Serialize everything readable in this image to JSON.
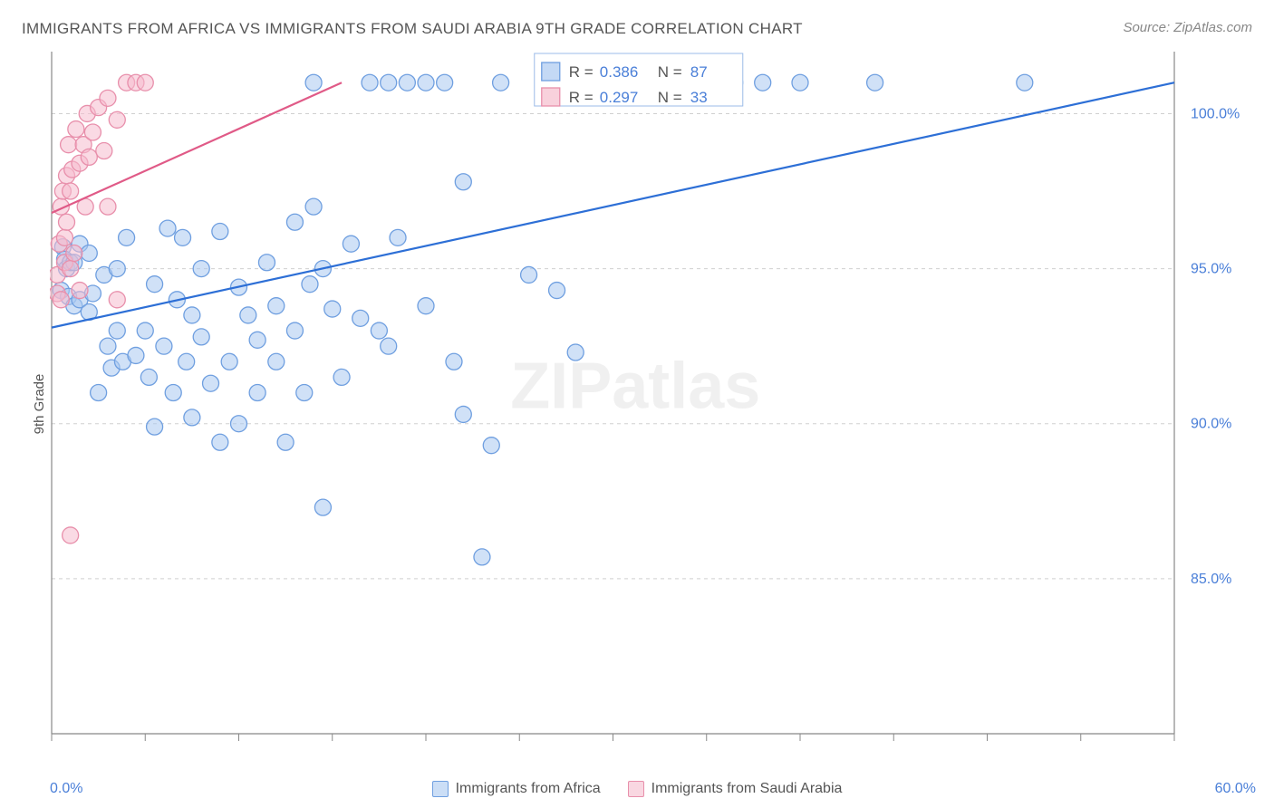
{
  "title": "IMMIGRANTS FROM AFRICA VS IMMIGRANTS FROM SAUDI ARABIA 9TH GRADE CORRELATION CHART",
  "source": "Source: ZipAtlas.com",
  "y_axis_label": "9th Grade",
  "watermark": "ZIPatlas",
  "plot": {
    "xlim": [
      0,
      60
    ],
    "ylim": [
      80,
      102
    ],
    "x_ticks": [
      0,
      5,
      10,
      15,
      20,
      25,
      30,
      35,
      40,
      45,
      50,
      55,
      60
    ],
    "x_tick_labels": {
      "0": "0.0%",
      "60": "60.0%"
    },
    "y_ticks": [
      85,
      90,
      95,
      100
    ],
    "y_tick_labels": {
      "85": "85.0%",
      "90": "90.0%",
      "95": "95.0%",
      "100": "100.0%"
    },
    "grid_color": "#d0d0d0",
    "axis_color": "#888888",
    "background": "#ffffff"
  },
  "stats_box": {
    "border_color": "#9bbbe8",
    "rows": [
      {
        "swatch": "#a9c8f0",
        "swatch_border": "#6f9fe0",
        "r_label": "R =",
        "r_value": "0.386",
        "n_label": "N =",
        "n_value": "87"
      },
      {
        "swatch": "#f5bccd",
        "swatch_border": "#e88fab",
        "r_label": "R =",
        "r_value": "0.297",
        "n_label": "N =",
        "n_value": "33"
      }
    ],
    "label_color": "#555555",
    "value_color": "#4a7fd8"
  },
  "series": [
    {
      "name": "Immigrants from Africa",
      "marker_fill": "#a9c8f0",
      "marker_fill_opacity": 0.55,
      "marker_stroke": "#6f9fe0",
      "marker_radius": 9,
      "line_color": "#2d6fd6",
      "line_width": 2.2,
      "trend": {
        "x1": 0,
        "y1": 93.1,
        "x2": 60,
        "y2": 101.0
      },
      "points": [
        [
          0.5,
          94.3
        ],
        [
          0.6,
          95.7
        ],
        [
          0.7,
          95.3
        ],
        [
          0.8,
          95.0
        ],
        [
          0.9,
          94.1
        ],
        [
          1.0,
          95.2
        ],
        [
          1.2,
          95.2
        ],
        [
          1.2,
          93.8
        ],
        [
          1.5,
          94.0
        ],
        [
          1.5,
          95.8
        ],
        [
          2.0,
          95.5
        ],
        [
          2.0,
          93.6
        ],
        [
          2.2,
          94.2
        ],
        [
          2.5,
          91.0
        ],
        [
          2.8,
          94.8
        ],
        [
          3.0,
          92.5
        ],
        [
          3.2,
          91.8
        ],
        [
          3.5,
          95.0
        ],
        [
          3.5,
          93.0
        ],
        [
          3.8,
          92.0
        ],
        [
          4.0,
          96.0
        ],
        [
          4.5,
          92.2
        ],
        [
          5.0,
          93.0
        ],
        [
          5.2,
          91.5
        ],
        [
          5.5,
          94.5
        ],
        [
          5.5,
          89.9
        ],
        [
          6.0,
          92.5
        ],
        [
          6.2,
          96.3
        ],
        [
          6.5,
          91.0
        ],
        [
          6.7,
          94.0
        ],
        [
          7.0,
          96.0
        ],
        [
          7.2,
          92.0
        ],
        [
          7.5,
          93.5
        ],
        [
          7.5,
          90.2
        ],
        [
          8.0,
          95.0
        ],
        [
          8.0,
          92.8
        ],
        [
          8.5,
          91.3
        ],
        [
          9.0,
          89.4
        ],
        [
          9.0,
          96.2
        ],
        [
          9.5,
          92.0
        ],
        [
          10.0,
          94.4
        ],
        [
          10.0,
          90.0
        ],
        [
          10.5,
          93.5
        ],
        [
          11.0,
          91.0
        ],
        [
          11.0,
          92.7
        ],
        [
          11.5,
          95.2
        ],
        [
          12.0,
          92.0
        ],
        [
          12.0,
          93.8
        ],
        [
          12.5,
          89.4
        ],
        [
          13.0,
          93.0
        ],
        [
          13.0,
          96.5
        ],
        [
          13.5,
          91.0
        ],
        [
          13.8,
          94.5
        ],
        [
          14.0,
          97.0
        ],
        [
          14.0,
          101.0
        ],
        [
          14.5,
          87.3
        ],
        [
          14.5,
          95.0
        ],
        [
          15.0,
          93.7
        ],
        [
          15.5,
          91.5
        ],
        [
          16.0,
          95.8
        ],
        [
          16.5,
          93.4
        ],
        [
          17.0,
          101.0
        ],
        [
          17.5,
          93.0
        ],
        [
          18.0,
          92.5
        ],
        [
          18.0,
          101.0
        ],
        [
          18.5,
          96.0
        ],
        [
          19.0,
          101.0
        ],
        [
          20.0,
          101.0
        ],
        [
          20.0,
          93.8
        ],
        [
          21.0,
          101.0
        ],
        [
          21.5,
          92.0
        ],
        [
          22.0,
          90.3
        ],
        [
          22.0,
          97.8
        ],
        [
          23.0,
          85.7
        ],
        [
          23.5,
          89.3
        ],
        [
          24.0,
          101.0
        ],
        [
          25.5,
          94.8
        ],
        [
          27.0,
          94.3
        ],
        [
          27.5,
          101.0
        ],
        [
          28.0,
          92.3
        ],
        [
          30.0,
          101.0
        ],
        [
          33.0,
          101.0
        ],
        [
          36.5,
          101.0
        ],
        [
          38.0,
          101.0
        ],
        [
          40.0,
          101.0
        ],
        [
          44.0,
          101.0
        ],
        [
          52.0,
          101.0
        ]
      ]
    },
    {
      "name": "Immigrants from Saudi Arabia",
      "marker_fill": "#f5bccd",
      "marker_fill_opacity": 0.55,
      "marker_stroke": "#e88fab",
      "marker_radius": 9,
      "line_color": "#e05a87",
      "line_width": 2.2,
      "trend": {
        "x1": 0,
        "y1": 96.8,
        "x2": 15.5,
        "y2": 101.0
      },
      "points": [
        [
          0.3,
          94.8
        ],
        [
          0.3,
          94.2
        ],
        [
          0.4,
          95.8
        ],
        [
          0.5,
          97.0
        ],
        [
          0.5,
          94.0
        ],
        [
          0.6,
          97.5
        ],
        [
          0.7,
          96.0
        ],
        [
          0.7,
          95.2
        ],
        [
          0.8,
          98.0
        ],
        [
          0.8,
          96.5
        ],
        [
          0.9,
          99.0
        ],
        [
          1.0,
          97.5
        ],
        [
          1.0,
          95.0
        ],
        [
          1.1,
          98.2
        ],
        [
          1.2,
          95.5
        ],
        [
          1.3,
          99.5
        ],
        [
          1.5,
          94.3
        ],
        [
          1.5,
          98.4
        ],
        [
          1.7,
          99.0
        ],
        [
          1.8,
          97.0
        ],
        [
          1.9,
          100.0
        ],
        [
          2.0,
          98.6
        ],
        [
          2.2,
          99.4
        ],
        [
          2.5,
          100.2
        ],
        [
          2.8,
          98.8
        ],
        [
          3.0,
          100.5
        ],
        [
          3.0,
          97.0
        ],
        [
          3.5,
          99.8
        ],
        [
          3.5,
          94.0
        ],
        [
          4.0,
          101.0
        ],
        [
          4.5,
          101.0
        ],
        [
          5.0,
          101.0
        ],
        [
          1.0,
          86.4
        ]
      ]
    }
  ],
  "bottom_legend": [
    {
      "swatch_fill": "#a9c8f0",
      "swatch_border": "#6f9fe0",
      "label": "Immigrants from Africa"
    },
    {
      "swatch_fill": "#f5bccd",
      "swatch_border": "#e88fab",
      "label": "Immigrants from Saudi Arabia"
    }
  ]
}
